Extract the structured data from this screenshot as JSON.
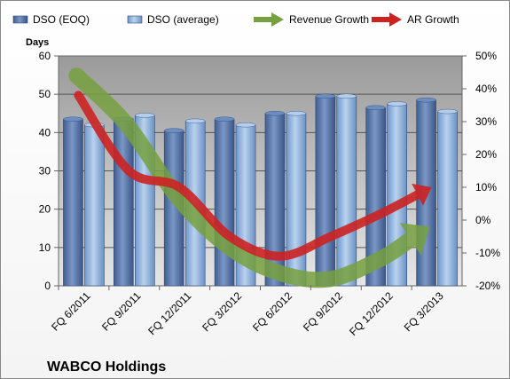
{
  "chart_data": {
    "type": "bar",
    "title": "WABCO Holdings",
    "ylabel": "Days",
    "ylim": [
      0,
      60
    ],
    "y_ticks": [
      "0",
      "10",
      "20",
      "30",
      "40",
      "50",
      "60"
    ],
    "y2lim": [
      -20,
      50
    ],
    "y2_ticks": [
      "-20%",
      "-10%",
      "0%",
      "10%",
      "20%",
      "30%",
      "40%",
      "50%"
    ],
    "categories": [
      "FQ 6/2011",
      "FQ 9/2011",
      "FQ 12/2011",
      "FQ 3/2012",
      "FQ 6/2012",
      "FQ 9/2012",
      "FQ 12/2012",
      "FQ 3/2013"
    ],
    "series": [
      {
        "name": "DSO (EOQ)",
        "kind": "bar",
        "axis": "left",
        "color": "#4f6fa3",
        "values": [
          43.5,
          43.5,
          40.5,
          43.5,
          45,
          49.5,
          46.5,
          48.5
        ]
      },
      {
        "name": "DSO (average)",
        "kind": "bar",
        "axis": "left",
        "color": "#8fb3df",
        "values": [
          42,
          44.5,
          43,
          42,
          45,
          49.5,
          47.5,
          45.5
        ]
      },
      {
        "name": "Revenue Growth",
        "kind": "arrow",
        "axis": "right",
        "color": "#77a040",
        "values": [
          44,
          29,
          7,
          -8,
          -16,
          -18,
          -12,
          -2
        ]
      },
      {
        "name": "AR Growth",
        "kind": "arrow",
        "axis": "right",
        "color": "#cc2222",
        "values": [
          38,
          15,
          10,
          -5,
          -11,
          -5,
          2,
          10
        ]
      }
    ],
    "grid": true,
    "legend": "top"
  }
}
